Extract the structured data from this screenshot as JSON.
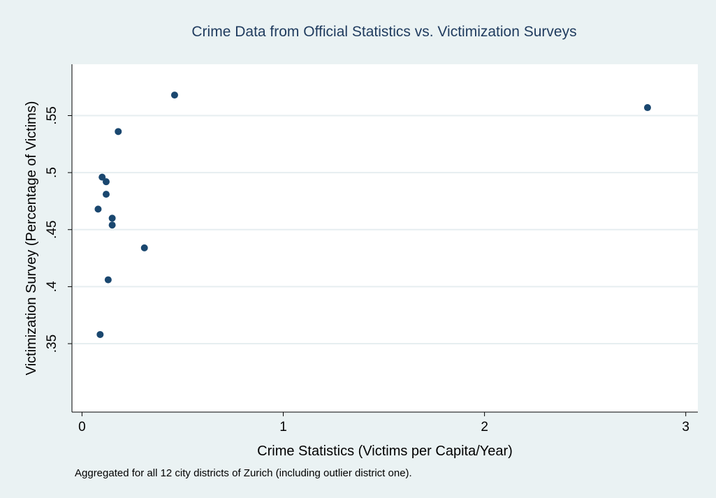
{
  "chart_data": {
    "type": "scatter",
    "title": "Crime Data from Official Statistics vs. Victimization Surveys",
    "xlabel": "Crime Statistics (Victims per Capita/Year)",
    "ylabel": "Victimization Survey (Percentage of Victims)",
    "note": "Aggregated for all 12 city districts of Zurich (including outlier district one).",
    "xlim": [
      -0.05,
      3.06
    ],
    "ylim": [
      0.29,
      0.595
    ],
    "xticks": [
      0,
      1,
      2,
      3
    ],
    "xtick_labels": [
      "0",
      "1",
      "2",
      "3"
    ],
    "yticks": [
      0.35,
      0.4,
      0.45,
      0.5,
      0.55
    ],
    "ytick_labels": [
      ".35",
      ".4",
      ".45",
      ".5",
      ".55"
    ],
    "grid": true,
    "points": [
      {
        "x": 0.46,
        "y": 0.568
      },
      {
        "x": 2.81,
        "y": 0.557
      },
      {
        "x": 0.18,
        "y": 0.536
      },
      {
        "x": 0.1,
        "y": 0.496
      },
      {
        "x": 0.12,
        "y": 0.492
      },
      {
        "x": 0.12,
        "y": 0.481
      },
      {
        "x": 0.08,
        "y": 0.468
      },
      {
        "x": 0.15,
        "y": 0.46
      },
      {
        "x": 0.15,
        "y": 0.454
      },
      {
        "x": 0.31,
        "y": 0.434
      },
      {
        "x": 0.13,
        "y": 0.406
      },
      {
        "x": 0.09,
        "y": 0.358
      }
    ]
  }
}
